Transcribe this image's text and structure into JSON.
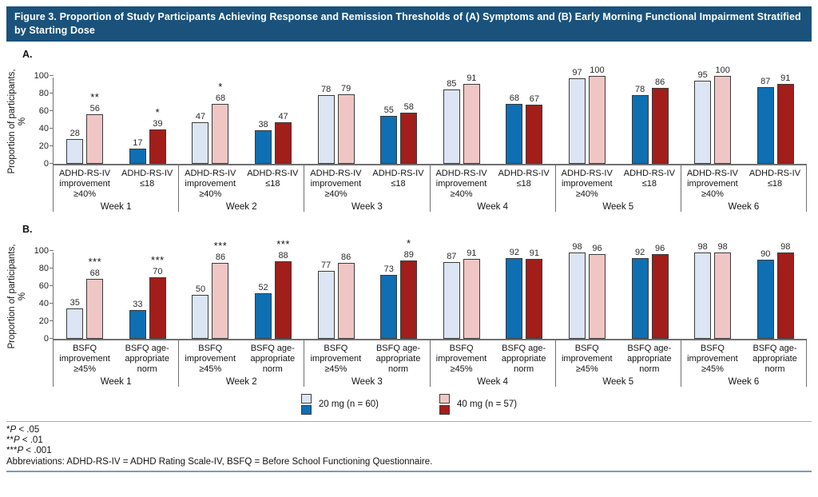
{
  "title": "Figure 3. Proportion of Study Participants Achieving Response and Remission Thresholds of (A) Symptoms and (B) Early Morning Functional Impairment Stratified by Starting Dose",
  "colors": {
    "header_bg": "#1a527c",
    "mg20_light": "#dbe5f3",
    "mg20_dark": "#0e6fb3",
    "mg40_light": "#f0c6c4",
    "mg40_dark": "#a11e1a",
    "axis": "#707070",
    "bar_outline": "#3b3b3b",
    "rule": "#7d9cb5"
  },
  "legend": {
    "items": [
      {
        "label": "20 mg  (n = 60)",
        "light": "#dbe5f3",
        "dark": "#0e6fb3"
      },
      {
        "label": "40 mg  (n = 57)",
        "light": "#f0c6c4",
        "dark": "#a11e1a"
      }
    ]
  },
  "footnotes": [
    {
      "stars": "*",
      "p": "P",
      "rest": " < .05"
    },
    {
      "stars": "**",
      "p": "P",
      "rest": " < .01"
    },
    {
      "stars": "***",
      "p": "P",
      "rest": " < .001"
    }
  ],
  "abbreviations": "Abbreviations: ADHD-RS-IV = ADHD Rating Scale-IV, BSFQ = Before School Functioning Questionnaire.",
  "chart_data": [
    {
      "type": "bar",
      "panel_label": "A.",
      "ylabel": "Proportion of participants, %",
      "ylabel_lines": [
        "Proportion of participants,",
        "%"
      ],
      "ylim": [
        0,
        100
      ],
      "yticks": [
        0,
        20,
        40,
        60,
        80,
        100
      ],
      "series": [
        "20 mg",
        "40 mg"
      ],
      "legend_position": "bottom-shared",
      "grid": false,
      "weeks": [
        {
          "label": "Week 1",
          "groups": [
            {
              "label_lines": [
                "ADHD-RS-IV",
                "improvement",
                "≥40%"
              ],
              "values": [
                28,
                56
              ],
              "sig": "**"
            },
            {
              "label_lines": [
                "ADHD-RS-IV",
                "≤18"
              ],
              "values": [
                17,
                39
              ],
              "sig": "*"
            }
          ]
        },
        {
          "label": "Week 2",
          "groups": [
            {
              "label_lines": [
                "ADHD-RS-IV",
                "improvement",
                "≥40%"
              ],
              "values": [
                47,
                68
              ],
              "sig": "*"
            },
            {
              "label_lines": [
                "ADHD-RS-IV",
                "≤18"
              ],
              "values": [
                38,
                47
              ],
              "sig": ""
            }
          ]
        },
        {
          "label": "Week 3",
          "groups": [
            {
              "label_lines": [
                "ADHD-RS-IV",
                "improvement",
                "≥40%"
              ],
              "values": [
                78,
                79
              ],
              "sig": ""
            },
            {
              "label_lines": [
                "ADHD-RS-IV",
                "≤18"
              ],
              "values": [
                55,
                58
              ],
              "sig": ""
            }
          ]
        },
        {
          "label": "Week 4",
          "groups": [
            {
              "label_lines": [
                "ADHD-RS-IV",
                "improvement",
                "≥40%"
              ],
              "values": [
                85,
                91
              ],
              "sig": ""
            },
            {
              "label_lines": [
                "ADHD-RS-IV",
                "≤18"
              ],
              "values": [
                68,
                67
              ],
              "sig": ""
            }
          ]
        },
        {
          "label": "Week 5",
          "groups": [
            {
              "label_lines": [
                "ADHD-RS-IV",
                "improvement",
                "≥40%"
              ],
              "values": [
                97,
                100
              ],
              "sig": ""
            },
            {
              "label_lines": [
                "ADHD-RS-IV",
                "≤18"
              ],
              "values": [
                78,
                86
              ],
              "sig": ""
            }
          ]
        },
        {
          "label": "Week 6",
          "groups": [
            {
              "label_lines": [
                "ADHD-RS-IV",
                "improvement",
                "≥40%"
              ],
              "values": [
                95,
                100
              ],
              "sig": ""
            },
            {
              "label_lines": [
                "ADHD-RS-IV",
                "≤18"
              ],
              "values": [
                87,
                91
              ],
              "sig": ""
            }
          ]
        }
      ]
    },
    {
      "type": "bar",
      "panel_label": "B.",
      "ylabel": "Proportion of participants, %",
      "ylabel_lines": [
        "Proportion of participants,",
        "%"
      ],
      "ylim": [
        0,
        100
      ],
      "yticks": [
        0,
        20,
        40,
        60,
        80,
        100
      ],
      "series": [
        "20 mg",
        "40 mg"
      ],
      "legend_position": "bottom-shared",
      "grid": false,
      "weeks": [
        {
          "label": "Week 1",
          "groups": [
            {
              "label_lines": [
                "BSFQ",
                "improvement",
                "≥45%"
              ],
              "values": [
                35,
                68
              ],
              "sig": "***"
            },
            {
              "label_lines": [
                "BSFQ age-",
                "appropriate",
                "norm"
              ],
              "values": [
                33,
                70
              ],
              "sig": "***"
            }
          ]
        },
        {
          "label": "Week 2",
          "groups": [
            {
              "label_lines": [
                "BSFQ",
                "improvement",
                "≥45%"
              ],
              "values": [
                50,
                86
              ],
              "sig": "***"
            },
            {
              "label_lines": [
                "BSFQ age-",
                "appropriate",
                "norm"
              ],
              "values": [
                52,
                88
              ],
              "sig": "***"
            }
          ]
        },
        {
          "label": "Week 3",
          "groups": [
            {
              "label_lines": [
                "BSFQ",
                "improvement",
                "≥45%"
              ],
              "values": [
                77,
                86
              ],
              "sig": ""
            },
            {
              "label_lines": [
                "BSFQ age-",
                "appropriate",
                "norm"
              ],
              "values": [
                73,
                89
              ],
              "sig": "*"
            }
          ]
        },
        {
          "label": "Week 4",
          "groups": [
            {
              "label_lines": [
                "BSFQ",
                "improvement",
                "≥45%"
              ],
              "values": [
                87,
                91
              ],
              "sig": ""
            },
            {
              "label_lines": [
                "BSFQ age-",
                "appropriate",
                "norm"
              ],
              "values": [
                92,
                91
              ],
              "sig": ""
            }
          ]
        },
        {
          "label": "Week 5",
          "groups": [
            {
              "label_lines": [
                "BSFQ",
                "improvement",
                "≥45%"
              ],
              "values": [
                98,
                96
              ],
              "sig": ""
            },
            {
              "label_lines": [
                "BSFQ age-",
                "appropriate",
                "norm"
              ],
              "values": [
                92,
                96
              ],
              "sig": ""
            }
          ]
        },
        {
          "label": "Week 6",
          "groups": [
            {
              "label_lines": [
                "BSFQ",
                "improvement",
                "≥45%"
              ],
              "values": [
                98,
                98
              ],
              "sig": ""
            },
            {
              "label_lines": [
                "BSFQ age-",
                "appropriate",
                "norm"
              ],
              "values": [
                90,
                98
              ],
              "sig": ""
            }
          ]
        }
      ]
    }
  ]
}
